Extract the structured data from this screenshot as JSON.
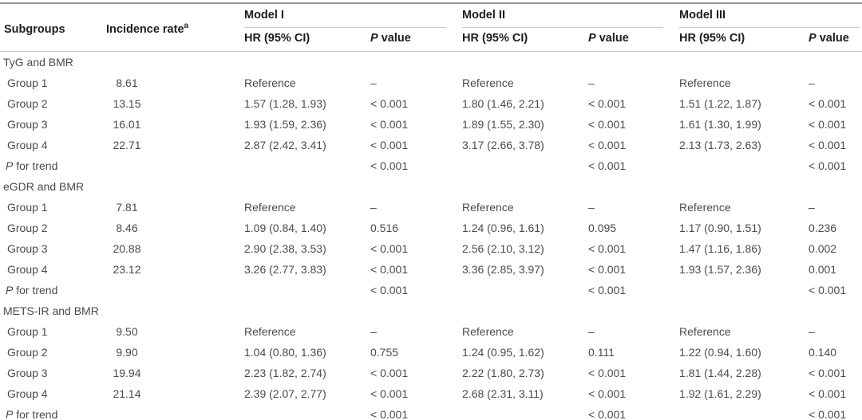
{
  "table": {
    "header": {
      "subgroups": "Subgroups",
      "incidence": "Incidence rate",
      "incidence_sup": "a",
      "models": [
        "Model I",
        "Model II",
        "Model III"
      ],
      "hr": "HR (95% CI)",
      "p_italic": "P",
      "p_rest": " value"
    },
    "dash": "–",
    "sections": [
      {
        "name": "TyG and BMR",
        "rows": [
          {
            "label": "Group 1",
            "incidence": "8.61",
            "m1_hr": "Reference",
            "m1_p": "–",
            "m2_hr": "Reference",
            "m2_p": "–",
            "m3_hr": "Reference",
            "m3_p": "–"
          },
          {
            "label": "Group 2",
            "incidence": "13.15",
            "m1_hr": "1.57 (1.28, 1.93)",
            "m1_p": "< 0.001",
            "m2_hr": "1.80 (1.46, 2.21)",
            "m2_p": "< 0.001",
            "m3_hr": "1.51 (1.22, 1.87)",
            "m3_p": "< 0.001"
          },
          {
            "label": "Group 3",
            "incidence": "16.01",
            "m1_hr": "1.93 (1.59, 2.36)",
            "m1_p": "< 0.001",
            "m2_hr": "1.89 (1.55, 2.30)",
            "m2_p": "< 0.001",
            "m3_hr": "1.61 (1.30, 1.99)",
            "m3_p": "< 0.001"
          },
          {
            "label": "Group 4",
            "incidence": "22.71",
            "m1_hr": "2.87 (2.42, 3.41)",
            "m1_p": "< 0.001",
            "m2_hr": "3.17 (2.66, 3.78)",
            "m2_p": "< 0.001",
            "m3_hr": "2.13 (1.73, 2.63)",
            "m3_p": "< 0.001"
          },
          {
            "label_italic": "P",
            "label_rest": " for trend",
            "incidence": "",
            "m1_hr": "",
            "m1_p": "< 0.001",
            "m2_hr": "",
            "m2_p": "< 0.001",
            "m3_hr": "",
            "m3_p": "< 0.001"
          }
        ]
      },
      {
        "name": "eGDR and BMR",
        "rows": [
          {
            "label": "Group 1",
            "incidence": "7.81",
            "m1_hr": "Reference",
            "m1_p": "–",
            "m2_hr": "Reference",
            "m2_p": "–",
            "m3_hr": "Reference",
            "m3_p": "–"
          },
          {
            "label": "Group 2",
            "incidence": "8.46",
            "m1_hr": "1.09 (0.84, 1.40)",
            "m1_p": "0.516",
            "m2_hr": "1.24 (0.96, 1.61)",
            "m2_p": "0.095",
            "m3_hr": "1.17 (0.90, 1.51)",
            "m3_p": "0.236"
          },
          {
            "label": "Group 3",
            "incidence": "20.88",
            "m1_hr": "2.90 (2.38, 3.53)",
            "m1_p": "< 0.001",
            "m2_hr": "2.56 (2.10, 3.12)",
            "m2_p": "< 0.001",
            "m3_hr": "1.47 (1.16, 1.86)",
            "m3_p": "0.002"
          },
          {
            "label": "Group 4",
            "incidence": "23.12",
            "m1_hr": "3.26 (2.77, 3.83)",
            "m1_p": "< 0.001",
            "m2_hr": "3.36 (2.85, 3.97)",
            "m2_p": "< 0.001",
            "m3_hr": "1.93 (1.57, 2.36)",
            "m3_p": "0.001"
          },
          {
            "label_italic": "P",
            "label_rest": " for trend",
            "incidence": "",
            "m1_hr": "",
            "m1_p": "< 0.001",
            "m2_hr": "",
            "m2_p": "< 0.001",
            "m3_hr": "",
            "m3_p": "< 0.001"
          }
        ]
      },
      {
        "name": "METS-IR and BMR",
        "rows": [
          {
            "label": "Group 1",
            "incidence": "9.50",
            "m1_hr": "Reference",
            "m1_p": "–",
            "m2_hr": "Reference",
            "m2_p": "–",
            "m3_hr": "Reference",
            "m3_p": "–"
          },
          {
            "label": "Group 2",
            "incidence": "9.90",
            "m1_hr": "1.04 (0.80, 1.36)",
            "m1_p": "0.755",
            "m2_hr": "1.24 (0.95, 1.62)",
            "m2_p": "0.111",
            "m3_hr": "1.22 (0.94, 1.60)",
            "m3_p": "0.140"
          },
          {
            "label": "Group 3",
            "incidence": "19.94",
            "m1_hr": "2.23 (1.82, 2.74)",
            "m1_p": "< 0.001",
            "m2_hr": "2.22 (1.80, 2.73)",
            "m2_p": "< 0.001",
            "m3_hr": "1.81 (1.44, 2.28)",
            "m3_p": "< 0.001"
          },
          {
            "label": "Group 4",
            "incidence": "21.14",
            "m1_hr": "2.39 (2.07, 2.77)",
            "m1_p": "< 0.001",
            "m2_hr": "2.68 (2.31, 3.11)",
            "m2_p": "< 0.001",
            "m3_hr": "1.92 (1.61, 2.29)",
            "m3_p": "< 0.001"
          },
          {
            "label_italic": "P",
            "label_rest": " for trend",
            "incidence": "",
            "m1_hr": "",
            "m1_p": "< 0.001",
            "m2_hr": "",
            "m2_p": "< 0.001",
            "m3_hr": "",
            "m3_p": "< 0.001"
          }
        ]
      }
    ]
  }
}
